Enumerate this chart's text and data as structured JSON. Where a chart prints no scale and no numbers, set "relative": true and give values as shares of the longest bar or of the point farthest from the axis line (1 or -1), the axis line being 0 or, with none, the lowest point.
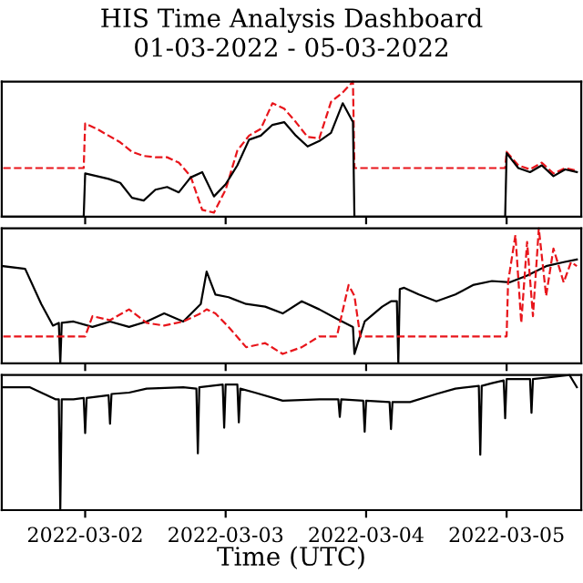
{
  "chart_data": [
    {
      "type": "line",
      "title": "HIS Time Analysis Dashboard",
      "subtitle": "01-03-2022 - 05-03-2022",
      "relative": true,
      "tick_labels": false,
      "xlim": [
        "2022-03-01T09:45",
        "2022-03-05T12:45"
      ],
      "xticks": [
        {
          "value": "2022-03-02",
          "label": null
        },
        {
          "value": "2022-03-03",
          "label": null
        },
        {
          "value": "2022-03-04",
          "label": null
        },
        {
          "value": "2022-03-05",
          "label": null
        }
      ],
      "series": [
        {
          "color": "#e8151b",
          "line_style": "dashed",
          "x": [
            "2022-03-01T10:00",
            "2022-03-01T23:45",
            "2022-03-02T00:00",
            "2022-03-02T02:00",
            "2022-03-02T04:00",
            "2022-03-02T06:00",
            "2022-03-02T08:00",
            "2022-03-02T10:00",
            "2022-03-02T12:00",
            "2022-03-02T14:00",
            "2022-03-02T16:00",
            "2022-03-02T18:00",
            "2022-03-02T20:00",
            "2022-03-02T22:00",
            "2022-03-03T00:00",
            "2022-03-03T02:00",
            "2022-03-03T04:00",
            "2022-03-03T06:00",
            "2022-03-03T08:00",
            "2022-03-03T10:00",
            "2022-03-03T12:00",
            "2022-03-03T14:00",
            "2022-03-03T16:00",
            "2022-03-03T18:00",
            "2022-03-03T20:00",
            "2022-03-03T21:45",
            "2022-03-03T22:00",
            "2022-03-04T23:45",
            "2022-03-05T00:00",
            "2022-03-05T02:00",
            "2022-03-05T04:00",
            "2022-03-05T06:00",
            "2022-03-05T08:00",
            "2022-03-05T10:00",
            "2022-03-05T12:00"
          ],
          "values": [
            0.36,
            0.36,
            0.69,
            0.65,
            0.6,
            0.55,
            0.48,
            0.45,
            0.44,
            0.44,
            0.4,
            0.3,
            0.05,
            0.03,
            0.2,
            0.49,
            0.6,
            0.65,
            0.84,
            0.8,
            0.7,
            0.59,
            0.58,
            0.85,
            0.92,
            1.0,
            0.36,
            0.36,
            0.48,
            0.38,
            0.35,
            0.4,
            0.32,
            0.36,
            0.34
          ]
        },
        {
          "color": "#000000",
          "line_style": "solid",
          "x": [
            "2022-03-01T10:00",
            "2022-03-01T23:45",
            "2022-03-02T00:00",
            "2022-03-02T02:00",
            "2022-03-02T04:00",
            "2022-03-02T06:00",
            "2022-03-02T08:00",
            "2022-03-02T10:00",
            "2022-03-02T12:00",
            "2022-03-02T14:00",
            "2022-03-02T16:00",
            "2022-03-02T18:00",
            "2022-03-02T20:00",
            "2022-03-02T22:00",
            "2022-03-03T00:00",
            "2022-03-03T02:00",
            "2022-03-03T04:00",
            "2022-03-03T06:00",
            "2022-03-03T08:00",
            "2022-03-03T10:00",
            "2022-03-03T12:00",
            "2022-03-03T14:00",
            "2022-03-03T16:00",
            "2022-03-03T18:00",
            "2022-03-03T20:00",
            "2022-03-03T21:45",
            "2022-03-03T22:00",
            "2022-03-04T23:45",
            "2022-03-05T00:00",
            "2022-03-05T02:00",
            "2022-03-05T04:00",
            "2022-03-05T06:00",
            "2022-03-05T08:00",
            "2022-03-05T10:00",
            "2022-03-05T12:00"
          ],
          "values": [
            0,
            0,
            0.32,
            0.3,
            0.28,
            0.25,
            0.14,
            0.12,
            0.2,
            0.22,
            0.18,
            0.29,
            0.33,
            0.15,
            0.24,
            0.38,
            0.57,
            0.6,
            0.68,
            0.7,
            0.6,
            0.52,
            0.56,
            0.62,
            0.84,
            0.7,
            0,
            0,
            0.47,
            0.36,
            0.33,
            0.38,
            0.3,
            0.35,
            0.33
          ]
        }
      ]
    },
    {
      "type": "line",
      "relative": true,
      "tick_labels": false,
      "xlim": [
        "2022-03-01T09:45",
        "2022-03-05T12:45"
      ],
      "xticks": [
        {
          "value": "2022-03-02",
          "label": null
        },
        {
          "value": "2022-03-03",
          "label": null
        },
        {
          "value": "2022-03-04",
          "label": null
        },
        {
          "value": "2022-03-05",
          "label": null
        }
      ],
      "series": [
        {
          "color": "#000000",
          "line_style": "solid",
          "x": [
            "2022-03-01T10:00",
            "2022-03-01T13:45",
            "2022-03-01T16:30",
            "2022-03-01T18:30",
            "2022-03-01T19:30",
            "2022-03-01T19:45",
            "2022-03-01T20:00",
            "2022-03-01T22:00",
            "2022-03-02T01:15",
            "2022-03-02T04:15",
            "2022-03-02T07:30",
            "2022-03-02T10:30",
            "2022-03-02T13:30",
            "2022-03-02T16:45",
            "2022-03-02T19:45",
            "2022-03-02T20:45",
            "2022-03-02T22:15",
            "2022-03-03T00:30",
            "2022-03-03T03:30",
            "2022-03-03T06:45",
            "2022-03-03T09:45",
            "2022-03-03T13:00",
            "2022-03-03T16:00",
            "2022-03-03T19:00",
            "2022-03-03T21:45",
            "2022-03-03T22:00",
            "2022-03-03T23:45",
            "2022-03-04T02:45",
            "2022-03-04T04:15",
            "2022-03-04T05:15",
            "2022-03-04T05:30",
            "2022-03-04T05:45",
            "2022-03-04T06:30",
            "2022-03-04T09:00",
            "2022-03-04T12:00",
            "2022-03-04T15:15",
            "2022-03-04T18:15",
            "2022-03-04T21:30",
            "2022-03-05T00:30",
            "2022-03-05T03:30",
            "2022-03-05T06:45",
            "2022-03-05T09:45",
            "2022-03-05T12:00"
          ],
          "values": [
            0.72,
            0.7,
            0.44,
            0.28,
            0.3,
            0,
            0.3,
            0.31,
            0.27,
            0.31,
            0.27,
            0.31,
            0.37,
            0.31,
            0.44,
            0.68,
            0.51,
            0.49,
            0.44,
            0.42,
            0.37,
            0.46,
            0.4,
            0.33,
            0.27,
            0.07,
            0.31,
            0.42,
            0.46,
            0.46,
            0,
            0.55,
            0.56,
            0.51,
            0.46,
            0.51,
            0.58,
            0.61,
            0.6,
            0.65,
            0.72,
            0.75,
            0.77
          ]
        },
        {
          "color": "#e8151b",
          "line_style": "dashed",
          "x": [
            "2022-03-01T10:00",
            "2022-03-02T00:00",
            "2022-03-02T01:15",
            "2022-03-02T04:15",
            "2022-03-02T07:30",
            "2022-03-02T10:30",
            "2022-03-02T13:30",
            "2022-03-02T16:45",
            "2022-03-02T19:45",
            "2022-03-02T20:45",
            "2022-03-02T22:15",
            "2022-03-03T00:30",
            "2022-03-03T03:30",
            "2022-03-03T06:45",
            "2022-03-03T09:45",
            "2022-03-03T13:00",
            "2022-03-03T16:00",
            "2022-03-03T19:00",
            "2022-03-03T21:00",
            "2022-03-03T22:00",
            "2022-03-03T23:00",
            "2022-03-05T00:00",
            "2022-03-05T00:15",
            "2022-03-05T01:30",
            "2022-03-05T02:30",
            "2022-03-05T03:30",
            "2022-03-05T04:30",
            "2022-03-05T05:30",
            "2022-03-05T06:45",
            "2022-03-05T08:00",
            "2022-03-05T09:45",
            "2022-03-05T11:00",
            "2022-03-05T12:00"
          ],
          "values": [
            0.2,
            0.2,
            0.35,
            0.32,
            0.4,
            0.3,
            0.28,
            0.31,
            0.37,
            0.4,
            0.37,
            0.27,
            0.12,
            0.15,
            0.07,
            0.12,
            0.2,
            0.2,
            0.58,
            0.5,
            0.2,
            0.2,
            0.6,
            0.95,
            0.3,
            0.9,
            0.35,
            1.0,
            0.5,
            0.85,
            0.6,
            0.75,
            0.72
          ]
        }
      ]
    },
    {
      "type": "line",
      "relative": true,
      "tick_labels": "x",
      "xlabel": "Time (UTC)",
      "xlim": [
        "2022-03-01T09:45",
        "2022-03-05T12:45"
      ],
      "xticks": [
        "2022-03-02",
        "2022-03-03",
        "2022-03-04",
        "2022-03-05"
      ],
      "series": [
        {
          "color": "#000000",
          "line_style": "solid",
          "x": [
            "2022-03-01T10:00",
            "2022-03-01T14:30",
            "2022-03-01T19:00",
            "2022-03-01T19:30",
            "2022-03-01T19:45",
            "2022-03-01T20:00",
            "2022-03-01T22:00",
            "2022-03-01T23:45",
            "2022-03-02T00:00",
            "2022-03-02T00:15",
            "2022-03-02T04:00",
            "2022-03-02T04:15",
            "2022-03-02T04:30",
            "2022-03-02T07:30",
            "2022-03-02T10:30",
            "2022-03-02T16:45",
            "2022-03-02T19:00",
            "2022-03-02T19:15",
            "2022-03-02T19:30",
            "2022-03-02T23:30",
            "2022-03-02T23:45",
            "2022-03-03T00:00",
            "2022-03-03T02:00",
            "2022-03-03T02:15",
            "2022-03-03T02:30",
            "2022-03-03T05:00",
            "2022-03-03T09:45",
            "2022-03-03T16:00",
            "2022-03-03T19:15",
            "2022-03-03T19:30",
            "2022-03-03T19:45",
            "2022-03-03T23:30",
            "2022-03-03T23:45",
            "2022-03-04T00:00",
            "2022-03-04T04:00",
            "2022-03-04T04:15",
            "2022-03-04T04:30",
            "2022-03-04T07:30",
            "2022-03-04T12:00",
            "2022-03-04T15:15",
            "2022-03-04T19:15",
            "2022-03-04T19:30",
            "2022-03-04T19:45",
            "2022-03-04T21:30",
            "2022-03-04T23:30",
            "2022-03-04T23:45",
            "2022-03-05T00:00",
            "2022-03-05T04:00",
            "2022-03-05T04:15",
            "2022-03-05T04:30",
            "2022-03-05T10:45",
            "2022-03-05T12:00"
          ],
          "values": [
            0.91,
            0.91,
            0.82,
            0.82,
            0,
            0.82,
            0.82,
            0.83,
            0.57,
            0.83,
            0.85,
            0.64,
            0.86,
            0.87,
            0.9,
            0.91,
            0.9,
            0.42,
            0.91,
            0.93,
            0.61,
            0.93,
            0.93,
            0.65,
            0.9,
            0.87,
            0.81,
            0.82,
            0.82,
            0.69,
            0.82,
            0.81,
            0.58,
            0.81,
            0.8,
            0.6,
            0.8,
            0.8,
            0.86,
            0.9,
            0.92,
            0.41,
            0.92,
            0.94,
            0.96,
            0.68,
            0.97,
            0.97,
            0.72,
            0.97,
            1.0,
            0.91
          ]
        }
      ]
    }
  ]
}
